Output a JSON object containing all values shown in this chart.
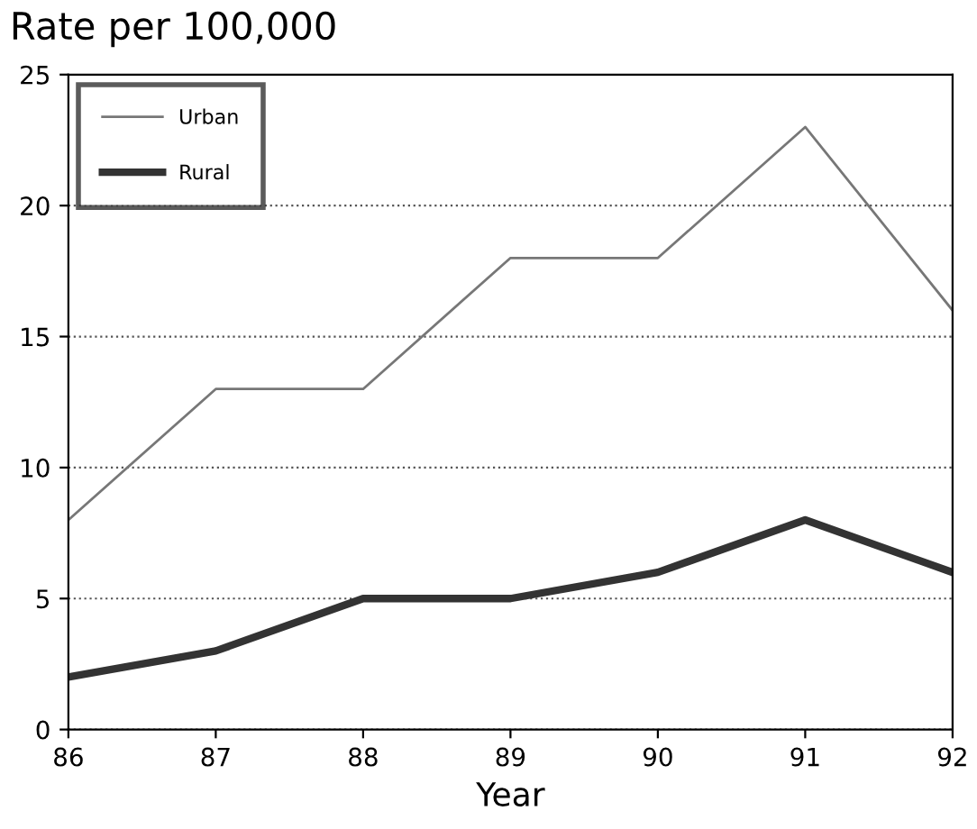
{
  "chart_data": {
    "type": "line",
    "ylabel": "Rate per 100,000",
    "xlabel": "Year",
    "x": [
      86,
      87,
      88,
      89,
      90,
      91,
      92
    ],
    "series": [
      {
        "name": "Urban",
        "color": "#777777",
        "values": [
          8,
          13,
          13,
          18,
          18,
          23,
          16
        ]
      },
      {
        "name": "Rural",
        "color": "#333333",
        "values": [
          2,
          3,
          5,
          5,
          6,
          8,
          6
        ]
      }
    ],
    "xlim": [
      86,
      92
    ],
    "xticks": [
      86,
      87,
      88,
      89,
      90,
      91,
      92
    ],
    "ylim": [
      0,
      25
    ],
    "yticks": [
      0,
      5,
      10,
      15,
      20,
      25
    ],
    "grid": "y",
    "legend": "top left",
    "marker": "none",
    "line_style": "solid"
  }
}
